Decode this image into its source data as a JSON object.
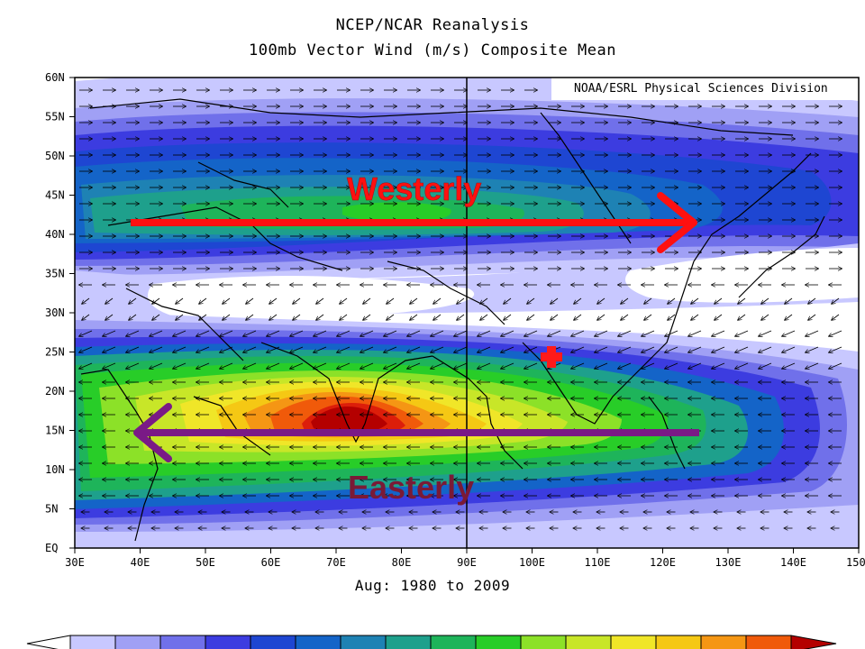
{
  "title_line1": "NCEP/NCAR Reanalysis",
  "title_line2": "100mb Vector Wind (m/s) Composite Mean",
  "credit": "NOAA/ESRL Physical Sciences Division",
  "footer": "Aug: 1980 to 2009",
  "x_ticks": [
    "30E",
    "40E",
    "50E",
    "60E",
    "70E",
    "80E",
    "90E",
    "100E",
    "110E",
    "120E",
    "130E",
    "140E",
    "150"
  ],
  "y_ticks": [
    "60N",
    "55N",
    "50N",
    "45N",
    "40N",
    "35N",
    "30N",
    "25N",
    "20N",
    "15N",
    "10N",
    "5N",
    "EQ"
  ],
  "annotations": {
    "westerly": "Westerly",
    "easterly": "Easterly"
  },
  "colors": {
    "westerly_arrow": "#ff1010",
    "easterly_arrow": "#7a1a86",
    "westerly_text": "#ff1010",
    "easterly_text": "#7a1a36",
    "marker": "#ff1a1a"
  },
  "colorbar_colors": [
    "#c8c8ff",
    "#a0a0f5",
    "#7070ea",
    "#3c3ce0",
    "#1e46d2",
    "#1464c8",
    "#1e82b4",
    "#1ea08c",
    "#1eb45a",
    "#28cd28",
    "#8ce128",
    "#c8e628",
    "#f0e628",
    "#f5c814",
    "#f59614",
    "#f05a0a",
    "#dc1e0a",
    "#b40000"
  ],
  "map": {
    "lon_range": [
      30,
      150
    ],
    "lat_range": [
      0,
      60
    ],
    "features": [
      "contour wind speed shading",
      "wind vectors",
      "coastlines",
      "90E meridian line"
    ]
  }
}
